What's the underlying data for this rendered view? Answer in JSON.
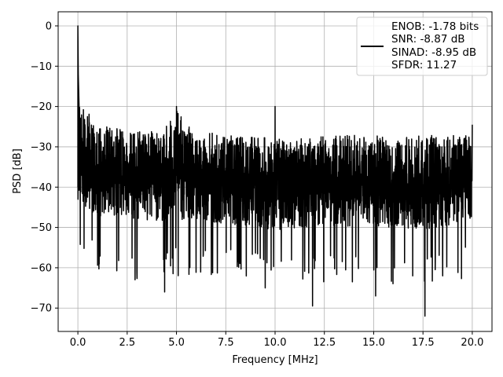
{
  "chart_data": {
    "type": "line",
    "title": "",
    "xlabel": "Frequency [MHz]",
    "ylabel": "PSD [dB]",
    "xlim": [
      -1.0,
      21.0
    ],
    "ylim": [
      -75.8,
      3.5
    ],
    "xticks": [
      0.0,
      2.5,
      5.0,
      7.5,
      10.0,
      12.5,
      15.0,
      17.5,
      20.0
    ],
    "xtick_labels": [
      "0.0",
      "2.5",
      "5.0",
      "7.5",
      "10.0",
      "12.5",
      "15.0",
      "17.5",
      "20.0"
    ],
    "yticks": [
      0,
      -10,
      -20,
      -30,
      -40,
      -50,
      -60,
      -70
    ],
    "ytick_labels": [
      "0",
      "−10",
      "−20",
      "−30",
      "−40",
      "−50",
      "−60",
      "−70"
    ],
    "grid": true,
    "legend": {
      "placement": "top-right",
      "lines": [
        "ENOB: -1.78 bits",
        "SNR: -8.87 dB",
        "SINAD: -8.95 dB",
        "SFDR: 11.27"
      ]
    },
    "series": [
      {
        "color": "#000000",
        "description_points": {
          "dc_peak": [
            0.0,
            0.0
          ],
          "spur_5mhz": [
            5.0,
            -20.0
          ],
          "spur_10mhz": [
            10.0,
            -20.0
          ],
          "spur_20mhz": [
            20.0,
            -24.5
          ],
          "min_point": [
            17.6,
            -72.0
          ]
        },
        "noise_band_upper": [
          [
            0.0,
            -17.0
          ],
          [
            1.0,
            -24.0
          ],
          [
            2.0,
            -25.5
          ],
          [
            3.0,
            -26.0
          ],
          [
            4.0,
            -26.0
          ],
          [
            4.6,
            -24.0
          ],
          [
            5.0,
            -20.0
          ],
          [
            5.4,
            -24.0
          ],
          [
            6.0,
            -26.0
          ],
          [
            8.0,
            -27.0
          ],
          [
            10.0,
            -28.0
          ],
          [
            12.0,
            -27.5
          ],
          [
            14.0,
            -27.0
          ],
          [
            16.0,
            -27.5
          ],
          [
            18.0,
            -27.0
          ],
          [
            20.0,
            -27.0
          ]
        ],
        "noise_band_lower": [
          [
            0.0,
            -50.0
          ],
          [
            1.0,
            -54.0
          ],
          [
            2.0,
            -53.0
          ],
          [
            3.0,
            -55.0
          ],
          [
            5.0,
            -55.0
          ],
          [
            7.0,
            -55.0
          ],
          [
            10.0,
            -57.0
          ],
          [
            12.0,
            -56.0
          ],
          [
            15.0,
            -56.0
          ],
          [
            18.0,
            -57.0
          ],
          [
            20.0,
            -54.0
          ]
        ]
      }
    ]
  }
}
